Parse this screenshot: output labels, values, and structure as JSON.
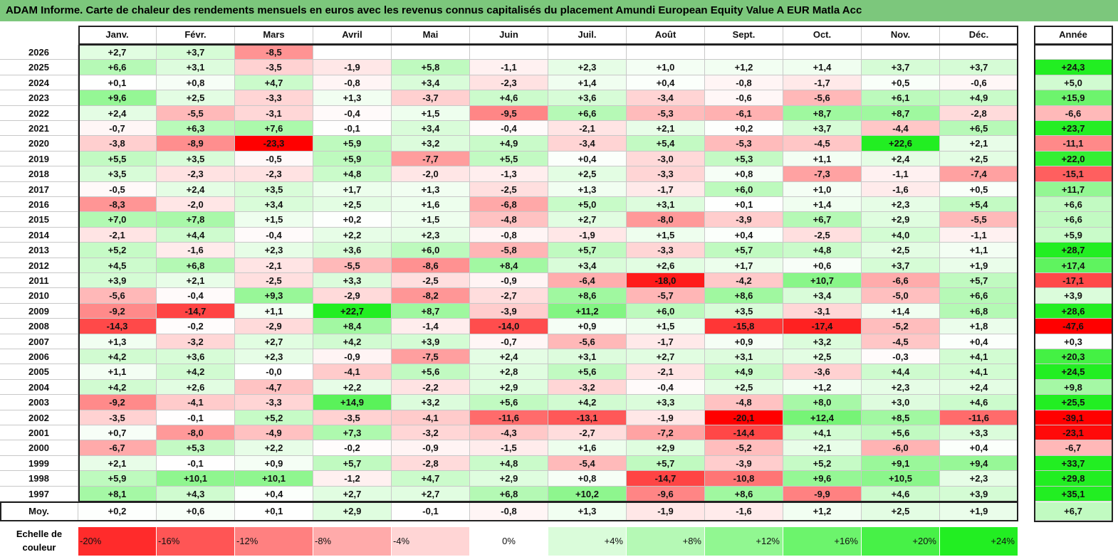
{
  "title": "ADAM Informe. Carte de chaleur des rendements mensuels en euros avec les revenus connus capitalisés du placement Amundi European Equity Value A EUR Matla Acc",
  "chart_data": {
    "type": "heatmap",
    "months": [
      "Janv.",
      "Févr.",
      "Mars",
      "Avril",
      "Mai",
      "Juin",
      "Juil.",
      "Août",
      "Sept.",
      "Oct.",
      "Nov.",
      "Déc."
    ],
    "annual_header": "Année",
    "rows": [
      {
        "year": "2026",
        "values": [
          "+2,7",
          "+3,7",
          "-8,5",
          "",
          "",
          "",
          "",
          "",
          "",
          "",
          "",
          ""
        ],
        "annual": ""
      },
      {
        "year": "2025",
        "values": [
          "+6,6",
          "+3,1",
          "-3,5",
          "-1,9",
          "+5,8",
          "-1,1",
          "+2,3",
          "+1,0",
          "+1,2",
          "+1,4",
          "+3,7",
          "+3,7"
        ],
        "annual": "+24,3"
      },
      {
        "year": "2024",
        "values": [
          "+0,1",
          "+0,8",
          "+4,7",
          "-0,8",
          "+3,4",
          "-2,3",
          "+1,4",
          "+0,4",
          "-0,8",
          "-1,7",
          "+0,5",
          "-0,6"
        ],
        "annual": "+5,0"
      },
      {
        "year": "2023",
        "values": [
          "+9,6",
          "+2,5",
          "-3,3",
          "+1,3",
          "-3,7",
          "+4,6",
          "+3,6",
          "-3,4",
          "-0,6",
          "-5,6",
          "+6,1",
          "+4,9"
        ],
        "annual": "+15,9"
      },
      {
        "year": "2022",
        "values": [
          "+2,4",
          "-5,5",
          "-3,1",
          "-0,4",
          "+1,5",
          "-9,5",
          "+6,6",
          "-5,3",
          "-6,1",
          "+8,7",
          "+8,7",
          "-2,8"
        ],
        "annual": "-6,6"
      },
      {
        "year": "2021",
        "values": [
          "-0,7",
          "+6,3",
          "+7,6",
          "-0,1",
          "+3,4",
          "-0,4",
          "-2,1",
          "+2,1",
          "+0,2",
          "+3,7",
          "-4,4",
          "+6,5"
        ],
        "annual": "+23,7"
      },
      {
        "year": "2020",
        "values": [
          "-3,8",
          "-8,9",
          "-23,3",
          "+5,9",
          "+3,2",
          "+4,9",
          "-3,4",
          "+5,4",
          "-5,3",
          "-4,5",
          "+22,6",
          "+2,1"
        ],
        "annual": "-11,1"
      },
      {
        "year": "2019",
        "values": [
          "+5,5",
          "+3,5",
          "-0,5",
          "+5,9",
          "-7,7",
          "+5,5",
          "+0,4",
          "-3,0",
          "+5,3",
          "+1,1",
          "+2,4",
          "+2,5"
        ],
        "annual": "+22,0"
      },
      {
        "year": "2018",
        "values": [
          "+3,5",
          "-2,3",
          "-2,3",
          "+4,8",
          "-2,0",
          "-1,3",
          "+2,5",
          "-3,3",
          "+0,8",
          "-7,3",
          "-1,1",
          "-7,4"
        ],
        "annual": "-15,1"
      },
      {
        "year": "2017",
        "values": [
          "-0,5",
          "+2,4",
          "+3,5",
          "+1,7",
          "+1,3",
          "-2,5",
          "+1,3",
          "-1,7",
          "+6,0",
          "+1,0",
          "-1,6",
          "+0,5"
        ],
        "annual": "+11,7"
      },
      {
        "year": "2016",
        "values": [
          "-8,3",
          "-2,0",
          "+3,4",
          "+2,5",
          "+1,6",
          "-6,8",
          "+5,0",
          "+3,1",
          "+0,1",
          "+1,4",
          "+2,3",
          "+5,4"
        ],
        "annual": "+6,6"
      },
      {
        "year": "2015",
        "values": [
          "+7,0",
          "+7,8",
          "+1,5",
          "+0,2",
          "+1,5",
          "-4,8",
          "+2,7",
          "-8,0",
          "-3,9",
          "+6,7",
          "+2,9",
          "-5,5"
        ],
        "annual": "+6,6"
      },
      {
        "year": "2014",
        "values": [
          "-2,1",
          "+4,4",
          "-0,4",
          "+2,2",
          "+2,3",
          "-0,8",
          "-1,9",
          "+1,5",
          "+0,4",
          "-2,5",
          "+4,0",
          "-1,1"
        ],
        "annual": "+5,9"
      },
      {
        "year": "2013",
        "values": [
          "+5,2",
          "-1,6",
          "+2,3",
          "+3,6",
          "+6,0",
          "-5,8",
          "+5,7",
          "-3,3",
          "+5,7",
          "+4,8",
          "+2,5",
          "+1,1"
        ],
        "annual": "+28,7"
      },
      {
        "year": "2012",
        "values": [
          "+4,5",
          "+6,8",
          "-2,1",
          "-5,5",
          "-8,6",
          "+8,4",
          "+3,4",
          "+2,6",
          "+1,7",
          "+0,6",
          "+3,7",
          "+1,9"
        ],
        "annual": "+17,4"
      },
      {
        "year": "2011",
        "values": [
          "+3,9",
          "+2,1",
          "-2,5",
          "+3,3",
          "-2,5",
          "-0,9",
          "-6,4",
          "-18,0",
          "-4,2",
          "+10,7",
          "-6,6",
          "+5,7"
        ],
        "annual": "-17,1"
      },
      {
        "year": "2010",
        "values": [
          "-5,6",
          "-0,4",
          "+9,3",
          "-2,9",
          "-8,2",
          "-2,7",
          "+8,6",
          "-5,7",
          "+8,6",
          "+3,4",
          "-5,0",
          "+6,6"
        ],
        "annual": "+3,9"
      },
      {
        "year": "2009",
        "values": [
          "-9,2",
          "-14,7",
          "+1,1",
          "+22,7",
          "+8,7",
          "-3,9",
          "+11,2",
          "+6,0",
          "+3,5",
          "-3,1",
          "+1,4",
          "+6,8"
        ],
        "annual": "+28,6"
      },
      {
        "year": "2008",
        "values": [
          "-14,3",
          "-0,2",
          "-2,9",
          "+8,4",
          "-1,4",
          "-14,0",
          "+0,9",
          "+1,5",
          "-15,8",
          "-17,4",
          "-5,2",
          "+1,8"
        ],
        "annual": "-47,6"
      },
      {
        "year": "2007",
        "values": [
          "+1,3",
          "-3,2",
          "+2,7",
          "+4,2",
          "+3,9",
          "-0,7",
          "-5,6",
          "-1,7",
          "+0,9",
          "+3,2",
          "-4,5",
          "+0,4"
        ],
        "annual": "+0,3"
      },
      {
        "year": "2006",
        "values": [
          "+4,2",
          "+3,6",
          "+2,3",
          "-0,9",
          "-7,5",
          "+2,4",
          "+3,1",
          "+2,7",
          "+3,1",
          "+2,5",
          "-0,3",
          "+4,1"
        ],
        "annual": "+20,3"
      },
      {
        "year": "2005",
        "values": [
          "+1,1",
          "+4,2",
          "-0,0",
          "-4,1",
          "+5,6",
          "+2,8",
          "+5,6",
          "-2,1",
          "+4,9",
          "-3,6",
          "+4,4",
          "+4,1"
        ],
        "annual": "+24,5"
      },
      {
        "year": "2004",
        "values": [
          "+4,2",
          "+2,6",
          "-4,7",
          "+2,2",
          "-2,2",
          "+2,9",
          "-3,2",
          "-0,4",
          "+2,5",
          "+1,2",
          "+2,3",
          "+2,4"
        ],
        "annual": "+9,8"
      },
      {
        "year": "2003",
        "values": [
          "-9,2",
          "-4,1",
          "-3,3",
          "+14,9",
          "+3,2",
          "+5,6",
          "+4,2",
          "+3,3",
          "-4,8",
          "+8,0",
          "+3,0",
          "+4,6"
        ],
        "annual": "+25,5"
      },
      {
        "year": "2002",
        "values": [
          "-3,5",
          "-0,1",
          "+5,2",
          "-3,5",
          "-4,1",
          "-11,6",
          "-13,1",
          "-1,9",
          "-20,1",
          "+12,4",
          "+8,5",
          "-11,6"
        ],
        "annual": "-39,1"
      },
      {
        "year": "2001",
        "values": [
          "+0,7",
          "-8,0",
          "-4,9",
          "+7,3",
          "-3,2",
          "-4,3",
          "-2,7",
          "-7,2",
          "-14,4",
          "+4,1",
          "+5,6",
          "+3,3"
        ],
        "annual": "-23,1"
      },
      {
        "year": "2000",
        "values": [
          "-6,7",
          "+5,3",
          "+2,2",
          "-0,2",
          "-0,9",
          "-1,5",
          "+1,6",
          "+2,9",
          "-5,2",
          "+2,1",
          "-6,0",
          "+0,4"
        ],
        "annual": "-6,7"
      },
      {
        "year": "1999",
        "values": [
          "+2,1",
          "-0,1",
          "+0,9",
          "+5,7",
          "-2,8",
          "+4,8",
          "-5,4",
          "+5,7",
          "-3,9",
          "+5,2",
          "+9,1",
          "+9,4"
        ],
        "annual": "+33,7"
      },
      {
        "year": "1998",
        "values": [
          "+5,9",
          "+10,1",
          "+10,1",
          "-1,2",
          "+4,7",
          "+2,9",
          "+0,8",
          "-14,7",
          "-10,8",
          "+9,6",
          "+10,5",
          "+2,3"
        ],
        "annual": "+29,8"
      },
      {
        "year": "1997",
        "values": [
          "+8,1",
          "+4,3",
          "+0,4",
          "+2,7",
          "+2,7",
          "+6,8",
          "+10,2",
          "-9,6",
          "+8,6",
          "-9,9",
          "+4,6",
          "+3,9"
        ],
        "annual": "+35,1"
      }
    ],
    "average": {
      "label": "Moy.",
      "values": [
        "+0,2",
        "+0,6",
        "+0,1",
        "+2,9",
        "-0,1",
        "-0,8",
        "+1,3",
        "-1,9",
        "-1,6",
        "+1,2",
        "+2,5",
        "+1,9"
      ],
      "annual": "+6,7"
    },
    "scale": {
      "label": "Echelle de couleur",
      "steps": [
        "-20%",
        "-16%",
        "-12%",
        "-8%",
        "-4%",
        "0%",
        "+4%",
        "+8%",
        "+12%",
        "+16%",
        "+20%",
        "+24%"
      ],
      "values": [
        -20,
        -16,
        -12,
        -8,
        -4,
        0,
        4,
        8,
        12,
        16,
        20,
        24
      ]
    },
    "colors": {
      "negative": "#ff0000",
      "neutral": "#ffffff",
      "positive": "#00ee00"
    }
  }
}
